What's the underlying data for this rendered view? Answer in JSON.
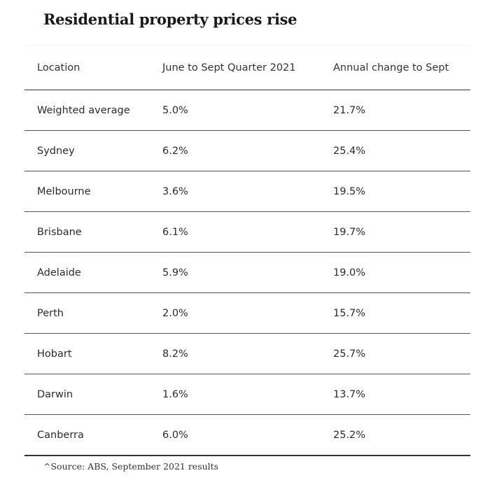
{
  "title": "Residential property prices rise",
  "table": {
    "headers": [
      "Location",
      "June to Sept Quarter 2021",
      "Annual change to Sept"
    ],
    "rows": [
      [
        "Weighted average",
        "5.0%",
        "21.7%"
      ],
      [
        "Sydney",
        "6.2%",
        "25.4%"
      ],
      [
        "Melbourne",
        "3.6%",
        "19.5%"
      ],
      [
        "Brisbane",
        "6.1%",
        "19.7%"
      ],
      [
        "Adelaide",
        "5.9%",
        "19.0%"
      ],
      [
        "Perth",
        "2.0%",
        "15.7%"
      ],
      [
        "Hobart",
        "8.2%",
        "25.7%"
      ],
      [
        "Darwin",
        "1.6%",
        "13.7%"
      ],
      [
        "Canberra",
        "6.0%",
        "25.2%"
      ]
    ]
  },
  "source": "^Source: ABS, September 2021 results"
}
